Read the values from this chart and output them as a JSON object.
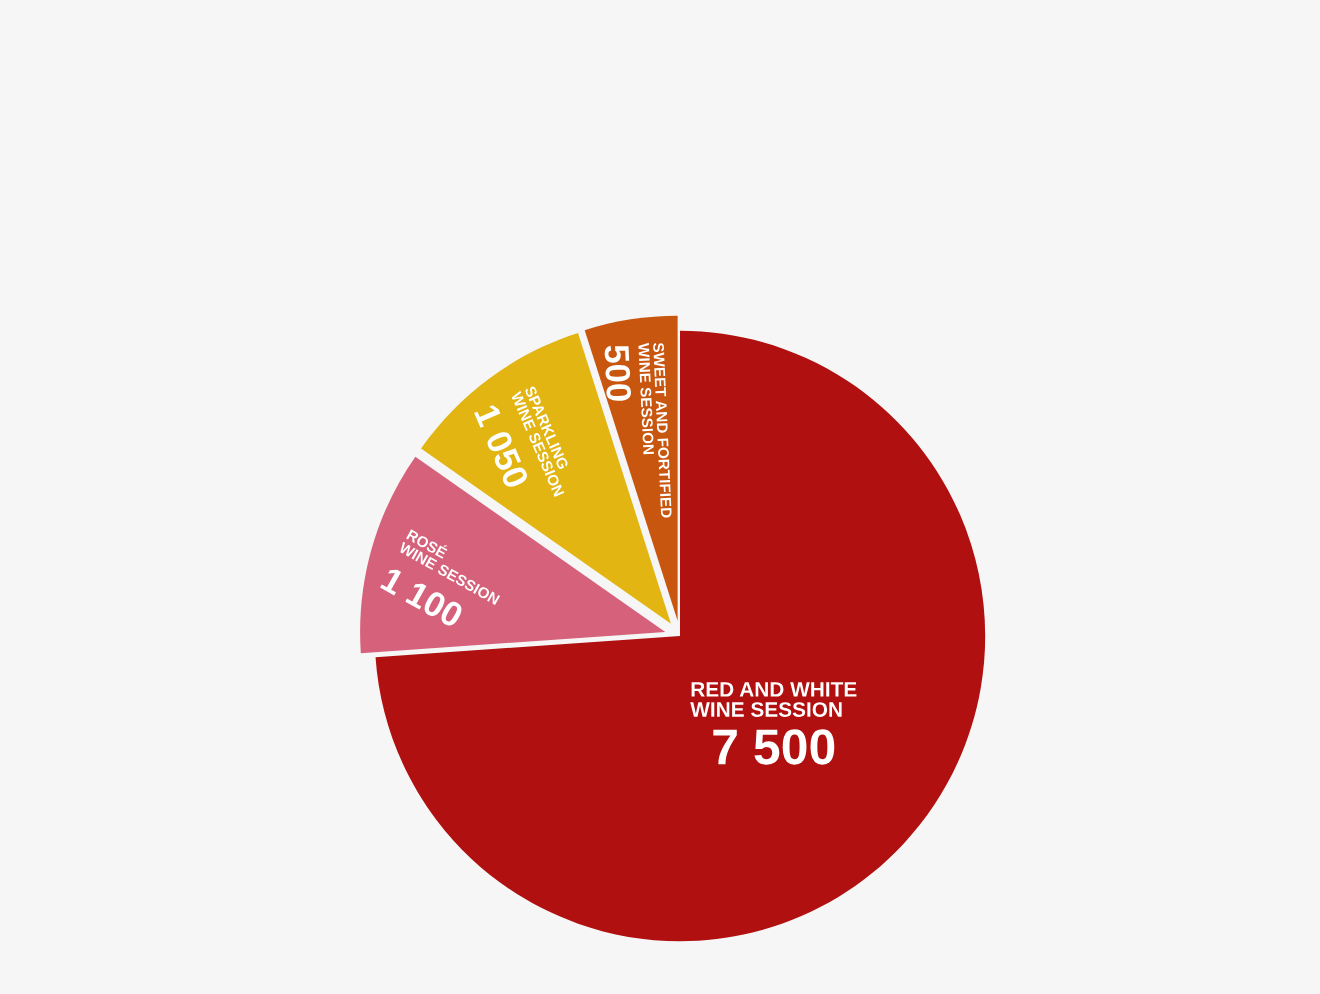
{
  "chart_data": {
    "type": "pie",
    "categories": [
      "RED AND WHITE\nWINE SESSION",
      "ROSÉ\nWINE SESSION",
      "SPARKLING\nWINE SESSION",
      "SWEET AND FORTIFIED\nWINE SESSION"
    ],
    "values": [
      7500,
      1100,
      1050,
      500
    ],
    "value_labels": [
      "7 500",
      "1 100",
      "1 050",
      "500"
    ],
    "colors": [
      "#b0100f",
      "#d6617b",
      "#e2b512",
      "#c8560f"
    ],
    "legend": false
  }
}
